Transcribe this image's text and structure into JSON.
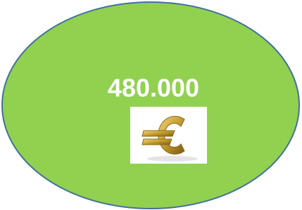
{
  "shape": {
    "label": "480.000"
  }
}
